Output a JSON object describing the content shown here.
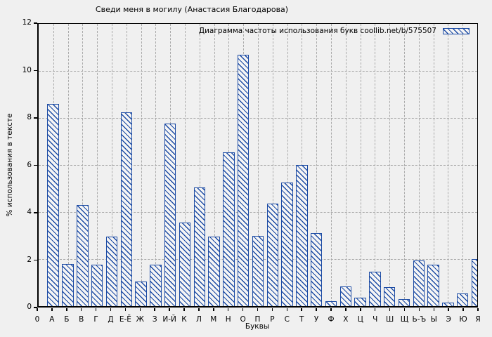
{
  "window": {
    "background_color": "#f0f0f0"
  },
  "chart_data": {
    "type": "bar",
    "title": "Сведи меня в могилу (Анастасия Благодарова)",
    "legend": "Диаграмма частоты использования букв coollib.net/b/575507",
    "legend_position": "top-right-inside",
    "xlabel": "Буквы",
    "ylabel": "% использования в тексте",
    "ylim": [
      0,
      12
    ],
    "yticks": [
      0,
      2,
      4,
      6,
      8,
      10,
      12
    ],
    "origin_tick_label": "0",
    "grid": true,
    "grid_style": "dashed",
    "bar_color": "#1c4ba4",
    "bar_fill": "#f5f5f5",
    "categories": [
      "А",
      "Б",
      "В",
      "Г",
      "Д",
      "Е-Ё",
      "Ж",
      "З",
      "И-Й",
      "К",
      "Л",
      "М",
      "Н",
      "О",
      "П",
      "Р",
      "С",
      "Т",
      "У",
      "Ф",
      "Х",
      "Ц",
      "Ч",
      "Ш",
      "Щ",
      "Ь-Ъ",
      "Ы",
      "Э",
      "Ю",
      "Я"
    ],
    "values": [
      8.6,
      1.8,
      4.3,
      1.75,
      2.95,
      8.25,
      1.05,
      1.75,
      7.75,
      3.55,
      5.05,
      2.95,
      6.55,
      10.7,
      3.0,
      4.35,
      5.25,
      6.0,
      3.1,
      0.2,
      0.85,
      0.35,
      1.45,
      0.8,
      0.3,
      1.95,
      1.75,
      0.15,
      0.55,
      2.0
    ]
  }
}
